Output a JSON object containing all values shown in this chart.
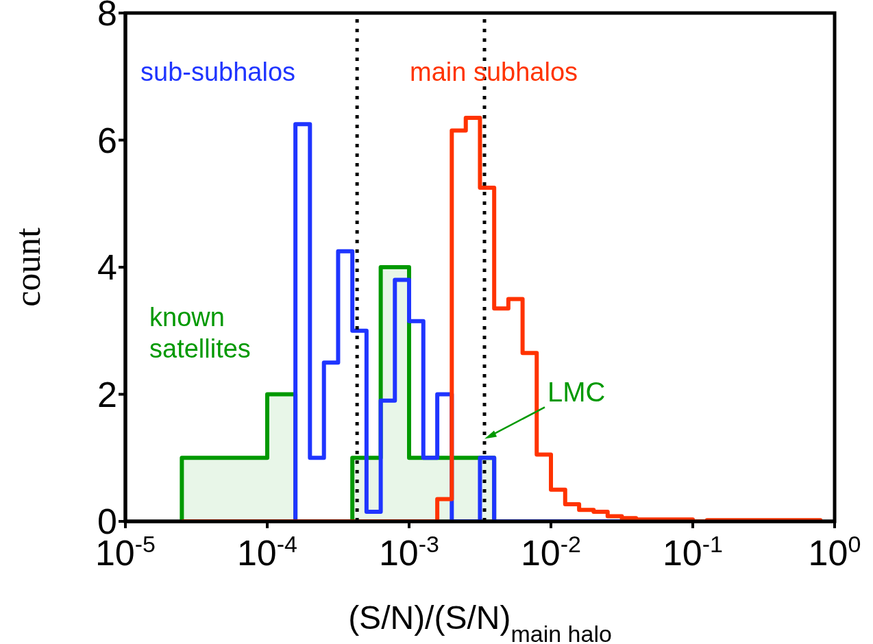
{
  "chart_data": {
    "type": "histogram",
    "xlabel": "(S/N)/(S/N)$_{main halo}$",
    "ylabel": "count",
    "log": "x",
    "xlim": [
      1e-05,
      1
    ],
    "xticks": [
      {
        "value": 1e-05,
        "label": "10$^{-5}$"
      },
      {
        "value": 0.0001,
        "label": "10$^{-4}$"
      },
      {
        "value": 0.001,
        "label": "10$^{-3}$"
      },
      {
        "value": 0.01,
        "label": "10$^{-2}$"
      },
      {
        "value": 0.1,
        "label": "10$^{-1}$"
      },
      {
        "value": 1,
        "label": "10$^{0}$"
      }
    ],
    "ylim": [
      0,
      8
    ],
    "yticks": [
      0,
      2,
      4,
      6,
      8
    ],
    "grid": false,
    "legend": false,
    "bins": [
      2.5e-05,
      0.0001,
      0.000158,
      0.0002,
      0.000251,
      0.000316,
      0.000398,
      0.000501,
      0.000631,
      0.000794,
      0.001,
      0.00126,
      0.00158,
      0.002,
      0.00251,
      0.00316,
      0.00398,
      0.00501,
      0.00631,
      0.00794,
      0.01,
      0.0126,
      0.0158,
      0.02,
      0.0251,
      0.0316,
      0.0398,
      0.0501,
      0.0631,
      0.0794,
      0.1,
      0.126,
      0.158,
      0.2,
      0.251,
      0.316,
      0.398,
      0.501,
      0.631,
      0.794
    ],
    "series": [
      {
        "name": "sub-subhalos",
        "color": "#1f35ff",
        "values": [
          0,
          0,
          6.25,
          1,
          2.5,
          4.25,
          3,
          0.15,
          1.9,
          3.8,
          3.15,
          1,
          2,
          0,
          0,
          1,
          0,
          0,
          0,
          0,
          0,
          0,
          0,
          0,
          0,
          0,
          0,
          0,
          0,
          0,
          0,
          0,
          0,
          0,
          0,
          0,
          0,
          0,
          0
        ]
      },
      {
        "name": "main subhalos",
        "color": "#ff3300",
        "values": [
          0,
          0,
          0,
          0,
          0,
          0,
          0,
          0,
          0,
          0,
          0,
          0,
          0.35,
          6.15,
          6.35,
          5.25,
          3.35,
          3.5,
          2.65,
          1.05,
          0.5,
          0.27,
          0.18,
          0.15,
          0.08,
          0.05,
          0.03,
          0.03,
          0.03,
          0.03,
          0,
          0.02,
          0.02,
          0.02,
          0.02,
          0.02,
          0.02,
          0.02,
          0.02
        ]
      },
      {
        "name": "known satellites",
        "color": "#009900",
        "values": [
          1,
          2,
          0,
          0,
          0,
          0,
          1,
          1,
          4,
          4,
          1,
          1,
          1,
          1,
          1,
          1,
          0,
          0,
          0,
          0,
          0,
          0,
          0,
          0,
          0,
          0,
          0,
          0,
          0,
          0,
          0,
          0,
          0,
          0,
          0,
          0,
          0,
          0,
          0
        ]
      }
    ],
    "ref_lines": [
      {
        "axis": "x",
        "value": 0.00043,
        "color": "#000000",
        "line_style": "dotted"
      },
      {
        "axis": "x",
        "value": 0.0034,
        "color": "#000000",
        "line_style": "dotted"
      }
    ],
    "annotations": [
      {
        "text": "LMC",
        "x": 0.0034,
        "y": 1.3
      }
    ]
  }
}
